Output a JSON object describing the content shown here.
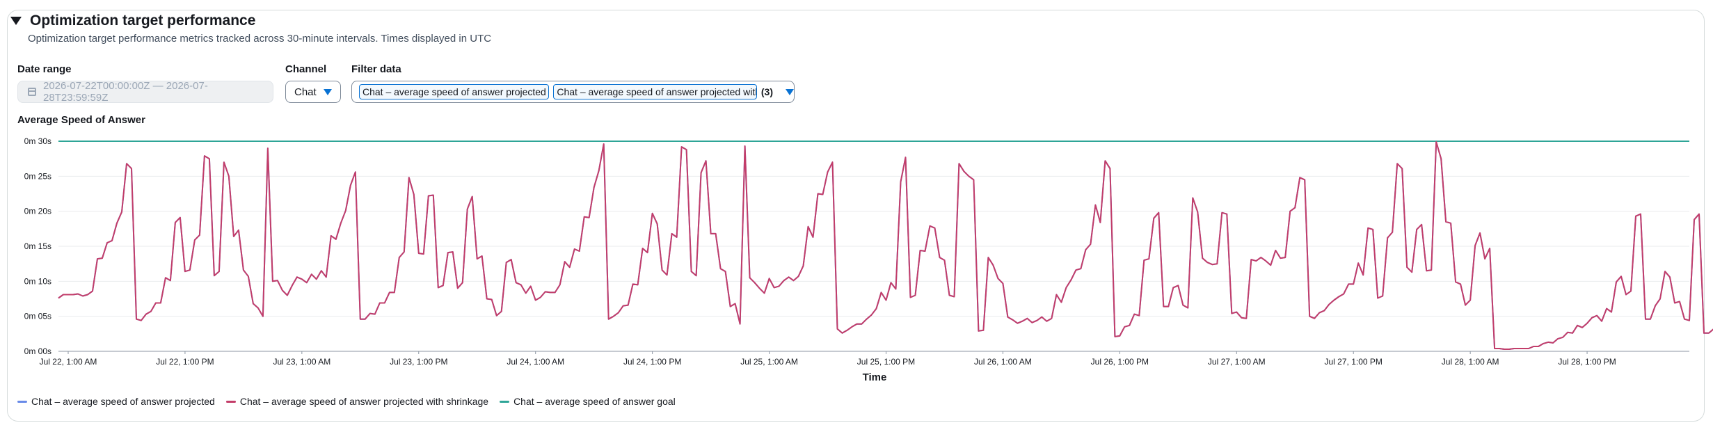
{
  "section": {
    "title": "Optimization target performance",
    "description": "Optimization target performance metrics tracked across 30-minute intervals. Times displayed in UTC"
  },
  "controls": {
    "date_range_label": "Date range",
    "date_range_value": "2026-07-22T00:00:00Z — 2026-07-28T23:59:59Z",
    "channel_label": "Channel",
    "channel_value": "Chat",
    "filter_label": "Filter data",
    "filter_tokens": [
      "Chat – average speed of answer projected",
      "Chat – average speed of answer projected with shrinkage"
    ],
    "filter_count": "(3)"
  },
  "colors": {
    "projected": "#688ae8",
    "projected_shrinkage": "#c33d69",
    "goal": "#2ea597",
    "grid": "#e9ebed",
    "axis": "#16191f"
  },
  "chart_data": {
    "type": "line",
    "title": "Average Speed of Answer",
    "xlabel": "Time",
    "ylabel": "",
    "ylim": [
      0,
      30
    ],
    "y_ticks": [
      0,
      5,
      10,
      15,
      20,
      25,
      30
    ],
    "y_tick_labels": [
      "0m 00s",
      "0m 05s",
      "0m 10s",
      "0m 15s",
      "0m 20s",
      "0m 25s",
      "0m 30s"
    ],
    "x_range": [
      "2026-07-22T00:00Z",
      "2026-07-28T23:30Z"
    ],
    "x_interval_minutes": 30,
    "x_ticks": [
      "2026-07-22T01:00Z",
      "2026-07-22T13:00Z",
      "2026-07-23T01:00Z",
      "2026-07-23T13:00Z",
      "2026-07-24T01:00Z",
      "2026-07-24T13:00Z",
      "2026-07-25T01:00Z",
      "2026-07-25T13:00Z",
      "2026-07-26T01:00Z",
      "2026-07-26T13:00Z",
      "2026-07-27T01:00Z",
      "2026-07-27T13:00Z",
      "2026-07-28T01:00Z",
      "2026-07-28T13:00Z"
    ],
    "x_tick_labels": [
      "Jul 22, 1:00 AM",
      "Jul 22, 1:00 PM",
      "Jul 23, 1:00 AM",
      "Jul 23, 1:00 PM",
      "Jul 24, 1:00 AM",
      "Jul 24, 1:00 PM",
      "Jul 25, 1:00 AM",
      "Jul 25, 1:00 PM",
      "Jul 26, 1:00 AM",
      "Jul 26, 1:00 PM",
      "Jul 27, 1:00 AM",
      "Jul 27, 1:00 PM",
      "Jul 28, 1:00 AM",
      "Jul 28, 1:00 PM"
    ],
    "legend_position": "bottom-left",
    "grid": true,
    "series": [
      {
        "name": "Chat – average speed of answer projected",
        "key": "projected",
        "values": [
          7.6,
          8.1,
          8.1,
          8.1,
          8.2,
          7.9,
          8.1,
          8.6,
          13.2,
          13.3,
          15.5,
          15.8,
          18.3,
          19.9,
          26.8,
          26.1,
          4.6,
          4.4,
          5.3,
          5.7,
          6.9,
          6.9,
          10.5,
          10.1,
          18.4,
          19.1,
          11.4,
          11.6,
          15.9,
          16.6,
          27.9,
          27.5,
          10.8,
          11.4,
          27.0,
          25.0,
          16.4,
          17.3,
          11.6,
          10.7,
          6.8,
          6.2,
          5.0,
          29.0,
          10.0,
          10.1,
          8.7,
          8.0,
          9.4,
          10.6,
          10.3,
          9.8,
          11.0,
          10.3,
          11.5,
          10.6,
          16.5,
          16.0,
          18.3,
          20.1,
          23.7,
          25.6,
          4.6,
          4.6,
          5.4,
          5.3,
          6.9,
          6.9,
          8.4,
          8.4,
          13.4,
          14.2,
          24.8,
          22.4,
          14.0,
          13.9,
          22.2,
          22.3,
          9.1,
          9.4,
          14.1,
          14.2,
          9.0,
          9.8,
          20.3,
          22.1,
          13.2,
          13.6,
          7.5,
          7.4,
          5.1,
          5.7,
          12.7,
          13.1,
          9.8,
          9.5,
          8.3,
          9.3,
          7.3,
          7.7,
          8.5,
          8.4,
          8.4,
          9.5,
          12.8,
          12.0,
          14.6,
          14.3,
          19.2,
          19.1,
          23.4,
          25.8,
          29.6,
          4.6,
          5.0,
          5.5,
          6.5,
          6.6,
          9.6,
          9.5,
          14.7,
          14.1,
          19.7,
          18.2,
          11.6,
          10.9,
          16.8,
          16.3,
          29.2,
          28.8,
          11.4,
          10.8,
          25.5,
          27.2,
          16.8,
          16.8,
          11.8,
          11.4,
          6.4,
          6.8,
          3.9,
          29.3,
          10.5,
          9.8,
          9.0,
          8.3,
          10.4,
          9.1,
          9.3,
          10.1,
          10.6,
          10.1,
          10.7,
          12.2,
          17.8,
          16.3,
          22.5,
          22.4,
          25.6,
          27.0,
          3.2,
          2.6,
          3.0,
          3.5,
          3.9,
          3.9,
          4.6,
          5.2,
          6.1,
          8.4,
          7.3,
          9.8,
          8.9,
          24.2,
          27.7,
          7.7,
          8.0,
          14.4,
          14.3,
          17.9,
          17.6,
          13.4,
          13.0,
          8.0,
          7.8,
          26.8,
          25.7,
          25.0,
          24.5,
          2.9,
          3.0,
          13.4,
          12.3,
          10.4,
          9.7,
          4.9,
          4.5,
          4.0,
          4.3,
          4.7,
          4.1,
          4.4,
          4.9,
          4.3,
          4.7,
          8.1,
          7.0,
          9.1,
          10.2,
          11.6,
          11.8,
          14.5,
          15.3,
          20.9,
          18.4,
          27.2,
          26.1,
          2.1,
          2.2,
          3.5,
          3.7,
          5.3,
          5.1,
          13.0,
          13.2,
          19.0,
          19.8,
          6.4,
          6.4,
          9.1,
          9.4,
          6.6,
          6.2,
          21.9,
          19.9,
          13.3,
          12.7,
          12.4,
          12.5,
          19.8,
          19.6,
          5.4,
          5.6,
          4.8,
          4.7,
          13.1,
          12.9,
          13.4,
          12.9,
          12.3,
          14.4,
          13.3,
          13.4,
          20.0,
          20.5,
          24.8,
          24.5,
          5.0,
          4.7,
          5.5,
          5.8,
          6.7,
          7.3,
          7.8,
          8.2,
          9.6,
          9.6,
          12.6,
          10.9,
          17.6,
          17.4,
          7.6,
          7.9,
          16.2,
          17.0,
          26.8,
          26.1,
          12.0,
          11.3,
          17.4,
          18.1,
          11.5,
          11.6,
          29.9,
          27.5,
          18.5,
          18.3,
          9.9,
          9.6,
          6.6,
          7.3,
          15.1,
          16.9,
          13.2,
          14.7,
          0.4,
          0.4,
          0.3,
          0.3,
          0.4,
          0.4,
          0.4,
          0.4,
          0.7,
          0.7,
          1.1,
          1.3,
          1.2,
          1.8,
          2.0,
          2.7,
          2.6,
          3.7,
          3.4,
          4.0,
          4.8,
          5.1,
          4.3,
          6.1,
          5.6,
          9.9,
          10.7,
          8.1,
          8.6,
          19.3,
          19.6,
          4.6,
          4.6,
          6.5,
          7.5,
          11.4,
          10.6,
          6.9,
          7.1,
          4.6,
          4.4,
          18.8,
          19.6,
          2.6,
          2.6,
          3.2,
          3.7,
          0.7,
          0.6,
          0.6,
          0.5
        ]
      },
      {
        "name": "Chat – average speed of answer projected with shrinkage",
        "key": "projected_shrinkage",
        "values": [
          7.6,
          8.1,
          8.1,
          8.1,
          8.2,
          7.9,
          8.1,
          8.6,
          13.2,
          13.3,
          15.5,
          15.8,
          18.3,
          19.9,
          26.8,
          26.1,
          4.6,
          4.4,
          5.3,
          5.7,
          6.9,
          6.9,
          10.5,
          10.1,
          18.4,
          19.1,
          11.4,
          11.6,
          15.9,
          16.6,
          27.9,
          27.5,
          10.8,
          11.4,
          27.0,
          25.0,
          16.4,
          17.3,
          11.6,
          10.7,
          6.8,
          6.2,
          5.0,
          29.0,
          10.0,
          10.1,
          8.7,
          8.0,
          9.4,
          10.6,
          10.3,
          9.8,
          11.0,
          10.3,
          11.5,
          10.6,
          16.5,
          16.0,
          18.3,
          20.1,
          23.7,
          25.6,
          4.6,
          4.6,
          5.4,
          5.3,
          6.9,
          6.9,
          8.4,
          8.4,
          13.4,
          14.2,
          24.8,
          22.4,
          14.0,
          13.9,
          22.2,
          22.3,
          9.1,
          9.4,
          14.1,
          14.2,
          9.0,
          9.8,
          20.3,
          22.1,
          13.2,
          13.6,
          7.5,
          7.4,
          5.1,
          5.7,
          12.7,
          13.1,
          9.8,
          9.5,
          8.3,
          9.3,
          7.3,
          7.7,
          8.5,
          8.4,
          8.4,
          9.5,
          12.8,
          12.0,
          14.6,
          14.3,
          19.2,
          19.1,
          23.4,
          25.8,
          29.6,
          4.6,
          5.0,
          5.5,
          6.5,
          6.6,
          9.6,
          9.5,
          14.7,
          14.1,
          19.7,
          18.2,
          11.6,
          10.9,
          16.8,
          16.3,
          29.2,
          28.8,
          11.4,
          10.8,
          25.5,
          27.2,
          16.8,
          16.8,
          11.8,
          11.4,
          6.4,
          6.8,
          3.9,
          29.3,
          10.5,
          9.8,
          9.0,
          8.3,
          10.4,
          9.1,
          9.3,
          10.1,
          10.6,
          10.1,
          10.7,
          12.2,
          17.8,
          16.3,
          22.5,
          22.4,
          25.6,
          27.0,
          3.2,
          2.6,
          3.0,
          3.5,
          3.9,
          3.9,
          4.6,
          5.2,
          6.1,
          8.4,
          7.3,
          9.8,
          8.9,
          24.2,
          27.7,
          7.7,
          8.0,
          14.4,
          14.3,
          17.9,
          17.6,
          13.4,
          13.0,
          8.0,
          7.8,
          26.8,
          25.7,
          25.0,
          24.5,
          2.9,
          3.0,
          13.4,
          12.3,
          10.4,
          9.7,
          4.9,
          4.5,
          4.0,
          4.3,
          4.7,
          4.1,
          4.4,
          4.9,
          4.3,
          4.7,
          8.1,
          7.0,
          9.1,
          10.2,
          11.6,
          11.8,
          14.5,
          15.3,
          20.9,
          18.4,
          27.2,
          26.1,
          2.1,
          2.2,
          3.5,
          3.7,
          5.3,
          5.1,
          13.0,
          13.2,
          19.0,
          19.8,
          6.4,
          6.4,
          9.1,
          9.4,
          6.6,
          6.2,
          21.9,
          19.9,
          13.3,
          12.7,
          12.4,
          12.5,
          19.8,
          19.6,
          5.4,
          5.6,
          4.8,
          4.7,
          13.1,
          12.9,
          13.4,
          12.9,
          12.3,
          14.4,
          13.3,
          13.4,
          20.0,
          20.5,
          24.8,
          24.5,
          5.0,
          4.7,
          5.5,
          5.8,
          6.7,
          7.3,
          7.8,
          8.2,
          9.6,
          9.6,
          12.6,
          10.9,
          17.6,
          17.4,
          7.6,
          7.9,
          16.2,
          17.0,
          26.8,
          26.1,
          12.0,
          11.3,
          17.4,
          18.1,
          11.5,
          11.6,
          29.9,
          27.5,
          18.5,
          18.3,
          9.9,
          9.6,
          6.6,
          7.3,
          15.1,
          16.9,
          13.2,
          14.7,
          0.4,
          0.4,
          0.3,
          0.3,
          0.4,
          0.4,
          0.4,
          0.4,
          0.7,
          0.7,
          1.1,
          1.3,
          1.2,
          1.8,
          2.0,
          2.7,
          2.6,
          3.7,
          3.4,
          4.0,
          4.8,
          5.1,
          4.3,
          6.1,
          5.6,
          9.9,
          10.7,
          8.1,
          8.6,
          19.3,
          19.6,
          4.6,
          4.6,
          6.5,
          7.5,
          11.4,
          10.6,
          6.9,
          7.1,
          4.6,
          4.4,
          18.8,
          19.6,
          2.6,
          2.6,
          3.2,
          3.7,
          0.7,
          0.6,
          0.6,
          0.5
        ]
      },
      {
        "name": "Chat – average speed of answer goal",
        "key": "goal",
        "values": [
          30
        ]
      }
    ]
  }
}
